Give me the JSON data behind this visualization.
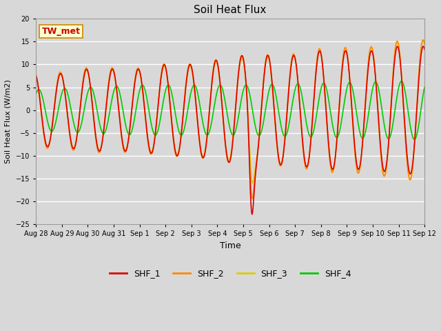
{
  "title": "Soil Heat Flux",
  "xlabel": "Time",
  "ylabel": "Soil Heat Flux (W/m2)",
  "ylim": [
    -25,
    20
  ],
  "legend_label": "TW_met",
  "series_labels": [
    "SHF_1",
    "SHF_2",
    "SHF_3",
    "SHF_4"
  ],
  "series_colors": [
    "#dd0000",
    "#ff8800",
    "#ddcc00",
    "#00cc00"
  ],
  "line_width": 1.2,
  "fig_width": 6.4,
  "fig_height": 4.8,
  "dpi": 100,
  "tick_labels": [
    "Aug 28",
    "Aug 29",
    "Aug 30",
    "Aug 31",
    "Sep 1",
    "Sep 2",
    "Sep 3",
    "Sep 4",
    "Sep 5",
    "Sep 6",
    "Sep 7",
    "Sep 8",
    "Sep 9",
    "Sep 10",
    "Sep 11",
    "Sep 12"
  ],
  "tick_positions": [
    0,
    1,
    2,
    3,
    4,
    5,
    6,
    7,
    8,
    9,
    10,
    11,
    12,
    13,
    14,
    15
  ],
  "yticks": [
    -25,
    -20,
    -15,
    -10,
    -5,
    0,
    5,
    10,
    15,
    20
  ]
}
